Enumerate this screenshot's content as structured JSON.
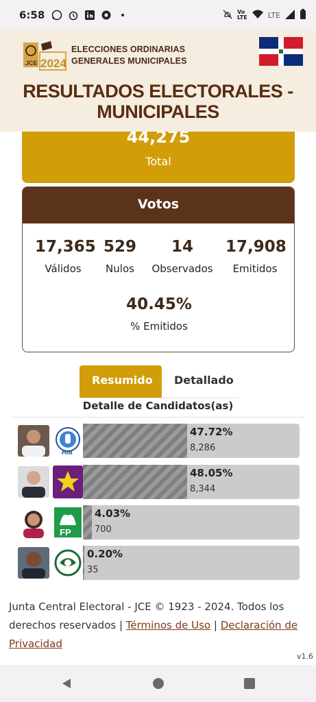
{
  "status_bar": {
    "time": "6:58",
    "network": "LTE"
  },
  "header": {
    "logo_text": "JCE 2024",
    "brand_line1": "ELECCIONES ORDINARIAS",
    "brand_line2": "GENERALES MUNICIPALES",
    "title_line1": "RESULTADOS ELECTORALES -",
    "title_line2": "MUNICIPALES"
  },
  "total": {
    "value": "44,275",
    "label": "Total"
  },
  "votos": {
    "title": "Votos",
    "stats": [
      {
        "value": "17,365",
        "label": "Válidos"
      },
      {
        "value": "529",
        "label": "Nulos"
      },
      {
        "value": "14",
        "label": "Observados"
      },
      {
        "value": "17,908",
        "label": "Emitidos"
      }
    ],
    "percent": {
      "value": "40.45%",
      "label": "% Emitidos"
    }
  },
  "tabs": [
    {
      "label": "Resumido",
      "active": true
    },
    {
      "label": "Detallado",
      "active": false
    }
  ],
  "candidates_title": "Detalle de Candidatos(as)",
  "candidates": [
    {
      "percent": "47.72%",
      "share": 0.4772,
      "votes": "8,286",
      "party": "PRM"
    },
    {
      "percent": "48.05%",
      "share": 0.4805,
      "votes": "8,344",
      "party": "PLD"
    },
    {
      "percent": "4.03%",
      "share": 0.0403,
      "votes": "700",
      "party": "FP"
    },
    {
      "percent": "0.20%",
      "share": 0.002,
      "votes": "35",
      "party": ""
    }
  ],
  "footer": {
    "text": "Junta Central Electoral - JCE © 1923 - 2024. Todos los derechos reservados |",
    "link_terms": "Términos de Uso",
    "separator": "|",
    "link_privacy": "Declaración de Privacidad",
    "version": "v1.6"
  },
  "colors": {
    "gold": "#d19d09",
    "brown": "#5b321a",
    "bar_bg": "#cdcacb"
  }
}
